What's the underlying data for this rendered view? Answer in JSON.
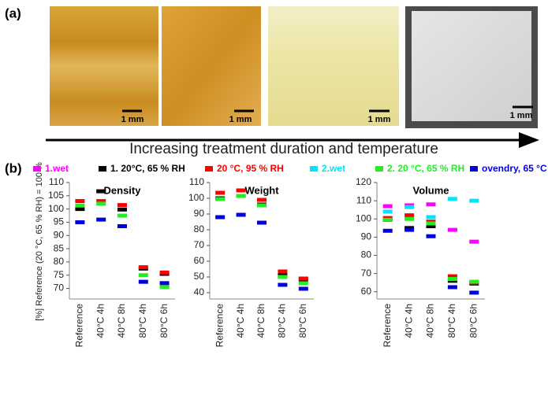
{
  "panel_labels": [
    "(a)",
    "(b)"
  ],
  "scale_labels": [
    "1 mm",
    "1 mm",
    "1 mm",
    "1 mm"
  ],
  "arrow_label": "Increasing treatment duration and temperature",
  "y_label": "[%] Reference (20 °C, 65 % RH) = 100 %",
  "legend": [
    {
      "name": "1.wet",
      "color": "#ff00ff"
    },
    {
      "name": "1. 20°C, 65 % RH",
      "color": "#000000"
    },
    {
      "name": "20 °C, 95 % RH",
      "color": "#ff0000"
    },
    {
      "name": "2.wet",
      "color": "#00e5ff"
    },
    {
      "name": "2. 20 °C, 65 % RH",
      "color": "#22ee22"
    },
    {
      "name": "ovendry, 65 °C",
      "color": "#0000dd"
    }
  ],
  "chart_data": [
    {
      "type": "scatter",
      "title": "Density",
      "categories": [
        "Reference",
        "40°C 4h",
        "40°C 8h",
        "80°C 4h",
        "80°C 6h"
      ],
      "ylim": [
        66,
        110
      ],
      "yticks": [
        70,
        75,
        80,
        85,
        90,
        95,
        100,
        105,
        110
      ],
      "series": [
        {
          "values": [
            null,
            null,
            null,
            null,
            null
          ]
        },
        {
          "values": [
            100,
            106.7,
            99.8,
            77.5,
            75.5
          ]
        },
        {
          "values": [
            103,
            103,
            101.5,
            78,
            76
          ]
        },
        {
          "values": [
            null,
            null,
            null,
            null,
            null
          ]
        },
        {
          "values": [
            101.3,
            102,
            97.5,
            75,
            70.5
          ]
        },
        {
          "values": [
            95,
            96,
            93.5,
            72.5,
            72
          ]
        }
      ]
    },
    {
      "type": "scatter",
      "title": "Weight",
      "categories": [
        "Reference",
        "40°C 4h",
        "40°C 8h",
        "80°C 4h",
        "80°C 6h"
      ],
      "ylim": [
        36,
        110
      ],
      "yticks": [
        40,
        50,
        60,
        70,
        80,
        90,
        100,
        110
      ],
      "series": [
        {
          "values": [
            null,
            null,
            null,
            null,
            null
          ]
        },
        {
          "values": [
            100,
            101.5,
            96,
            51,
            48.5
          ]
        },
        {
          "values": [
            103.5,
            105,
            99,
            53.5,
            49
          ]
        },
        {
          "values": [
            null,
            null,
            null,
            null,
            null
          ]
        },
        {
          "values": [
            99.5,
            101.5,
            95.5,
            50,
            46
          ]
        },
        {
          "values": [
            88,
            89.5,
            84.5,
            45,
            42.5
          ]
        }
      ]
    },
    {
      "type": "scatter",
      "title": "Volume",
      "categories": [
        "Reference",
        "40°C 4h",
        "40°C 8h",
        "80°C 4h",
        "80°C 6h"
      ],
      "ylim": [
        56,
        120
      ],
      "yticks": [
        60,
        70,
        80,
        90,
        100,
        110,
        120
      ],
      "series": [
        {
          "values": [
            107,
            107.5,
            108,
            94,
            87.5
          ]
        },
        {
          "values": [
            99.5,
            95,
            96,
            66,
            64.5
          ]
        },
        {
          "values": [
            100.5,
            102,
            98.5,
            68.5,
            65
          ]
        },
        {
          "values": [
            104,
            106.5,
            101,
            111,
            110
          ]
        },
        {
          "values": [
            99.5,
            100,
            97.5,
            67,
            65.5
          ]
        },
        {
          "values": [
            93.5,
            94,
            90.5,
            62.5,
            59.5
          ]
        }
      ]
    }
  ]
}
